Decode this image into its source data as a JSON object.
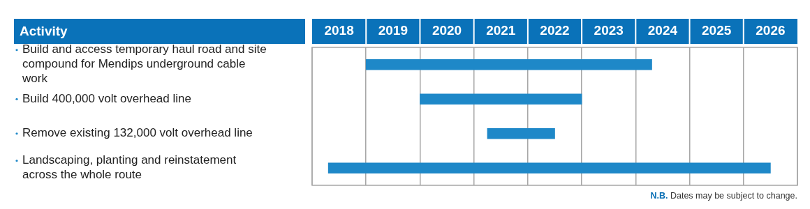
{
  "chart_data": {
    "type": "bar",
    "orientation": "horizontal",
    "ylabel": "Activity",
    "categories": [
      "Build and access temporary haul road and site compound for Mendips underground cable work",
      "Build 400,000 volt overhead line",
      "Remove existing 132,000 volt overhead line",
      "Landscaping, planting and reinstatement across the whole route"
    ],
    "base": [
      2019,
      2020,
      2021.25,
      2018.3
    ],
    "values": [
      5.3,
      3,
      1.25,
      8.2
    ],
    "color": "#1e88c8",
    "xlim": [
      2018,
      2027
    ],
    "xticks": [
      {
        "value": 2018,
        "label": null
      },
      {
        "value": 2018.5,
        "label": "2018"
      },
      {
        "value": 2019,
        "label": null
      },
      {
        "value": 2019.5,
        "label": "2019"
      },
      {
        "value": 2020,
        "label": null
      },
      {
        "value": 2020.5,
        "label": "2020"
      },
      {
        "value": 2021,
        "label": null
      },
      {
        "value": 2021.5,
        "label": "2021"
      },
      {
        "value": 2022,
        "label": null
      },
      {
        "value": 2022.5,
        "label": "2022"
      },
      {
        "value": 2023,
        "label": null
      },
      {
        "value": 2023.5,
        "label": "2023"
      },
      {
        "value": 2024,
        "label": null
      },
      {
        "value": 2024.5,
        "label": "2024"
      },
      {
        "value": 2025,
        "label": null
      },
      {
        "value": 2025.5,
        "label": "2025"
      },
      {
        "value": 2026,
        "label": null
      },
      {
        "value": 2026.5,
        "label": "2026"
      },
      {
        "value": 2027,
        "label": null
      }
    ],
    "grid": "x",
    "annotations": [
      "N.B. Dates may be subject to change."
    ]
  }
}
